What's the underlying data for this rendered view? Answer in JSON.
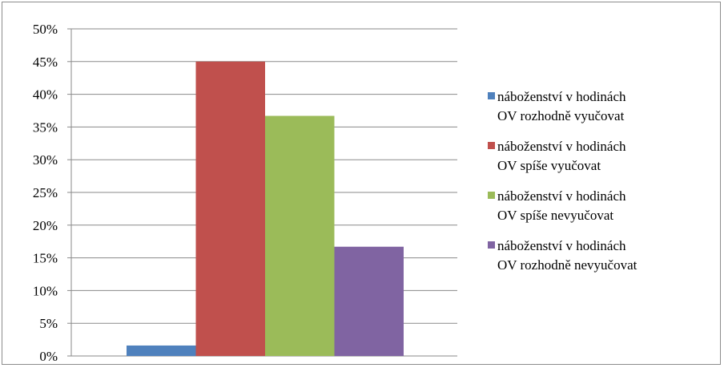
{
  "chart_data": {
    "type": "bar",
    "categories": [
      ""
    ],
    "series": [
      {
        "name": "náboženství v hodinách OV rozhodně vyučovat",
        "values": [
          1.6
        ],
        "color": "#4f81bd"
      },
      {
        "name": "náboženství v hodinách OV spíše vyučovat",
        "values": [
          45
        ],
        "color": "#c0504d"
      },
      {
        "name": "náboženství v hodinách OV spíše nevyučovat",
        "values": [
          36.7
        ],
        "color": "#9bbb59"
      },
      {
        "name": "náboženství v hodinách OV rozhodně nevyučovat",
        "values": [
          16.7
        ],
        "color": "#8064a2"
      }
    ],
    "legend": [
      {
        "line1": "náboženství v hodinách",
        "line2": "OV rozhodně vyučovat"
      },
      {
        "line1": "náboženství v hodinách",
        "line2": "OV spíše vyučovat"
      },
      {
        "line1": "náboženství v hodinách",
        "line2": "OV spíše nevyučovat"
      },
      {
        "line1": "náboženství v hodinách",
        "line2": "OV rozhodně nevyučovat"
      }
    ],
    "y_ticks": [
      "0%",
      "5%",
      "10%",
      "15%",
      "20%",
      "25%",
      "30%",
      "35%",
      "40%",
      "45%",
      "50%"
    ],
    "ylim": [
      0,
      50
    ],
    "grid": true,
    "legend_position": "right",
    "title": "",
    "xlabel": "",
    "ylabel": ""
  }
}
